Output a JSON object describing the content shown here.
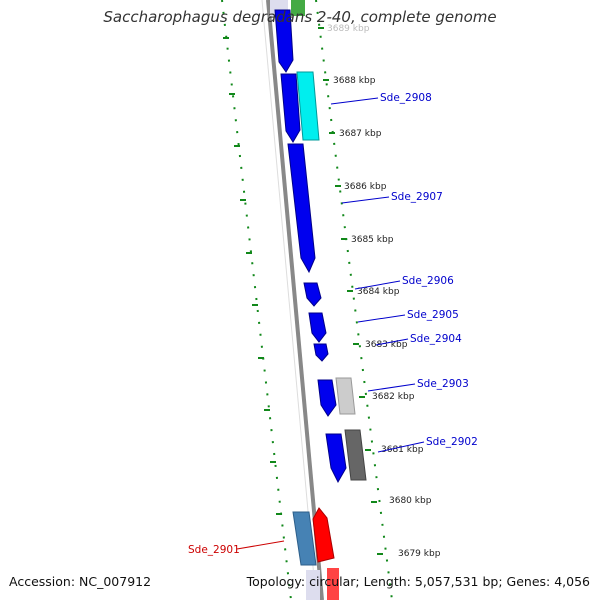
{
  "title": "Saccharophagus degradans 2-40, complete genome",
  "accession": "Accession: NC_007912",
  "summary": "Topology: circular; Length: 5,057,531 bp; Genes: 4,056",
  "colors": {
    "backbone": "#888888",
    "gc_ticks": "#11881a",
    "forward_gene": "#0000ee",
    "cyan_gene": "#00ffff",
    "light_gray_gene": "#cccccc",
    "dark_gray_gene": "#666666",
    "steelblue_gene": "#4682b4",
    "red_gene": "#ff0000",
    "green_gene": "#33aa33",
    "blue_label": "#0000cc",
    "red_label": "#cc0000"
  },
  "scale_labels": [
    "3689 kbp",
    "3688 kbp",
    "3687 kbp",
    "3686 kbp",
    "3685 kbp",
    "3684 kbp",
    "3683 kbp",
    "3682 kbp",
    "3681 kbp",
    "3680 kbp",
    "3679 kbp"
  ],
  "gene_labels": [
    {
      "name": "Sde_2908",
      "color": "blue"
    },
    {
      "name": "Sde_2907",
      "color": "blue"
    },
    {
      "name": "Sde_2906",
      "color": "blue"
    },
    {
      "name": "Sde_2905",
      "color": "blue"
    },
    {
      "name": "Sde_2904",
      "color": "blue"
    },
    {
      "name": "Sde_2903",
      "color": "blue"
    },
    {
      "name": "Sde_2902",
      "color": "blue"
    },
    {
      "name": "Sde_2901",
      "color": "red"
    }
  ]
}
